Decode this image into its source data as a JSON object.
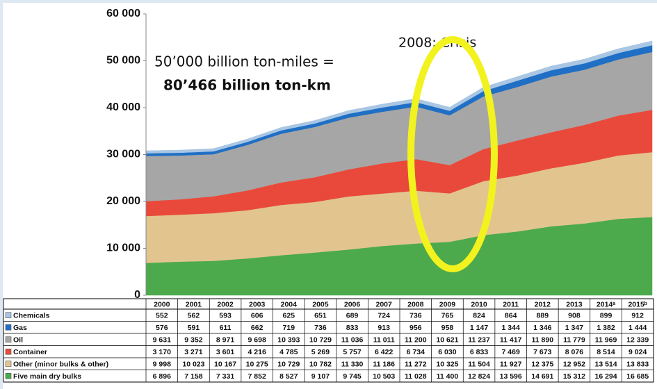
{
  "chart_data": {
    "type": "stacked_area",
    "categories": [
      "2000",
      "2001",
      "2002",
      "2003",
      "2004",
      "2005",
      "2006",
      "2007",
      "2008",
      "2009",
      "2010",
      "2011",
      "2012",
      "2013",
      "2014ᵃ",
      "2015ᵇ"
    ],
    "series": [
      {
        "name": "Chemicals",
        "color": "#a9c6e3",
        "values": [
          552,
          562,
          593,
          606,
          625,
          651,
          689,
          724,
          736,
          765,
          824,
          864,
          889,
          908,
          899,
          912
        ],
        "value_labels": [
          "552",
          "562",
          "593",
          "606",
          "625",
          "651",
          "689",
          "724",
          "736",
          "765",
          "824",
          "864",
          "889",
          "908",
          "899",
          "912"
        ]
      },
      {
        "name": "Gas",
        "color": "#1f6fc5",
        "values": [
          576,
          591,
          611,
          662,
          719,
          736,
          833,
          913,
          956,
          958,
          1147,
          1344,
          1346,
          1347,
          1382,
          1444
        ],
        "value_labels": [
          "576",
          "591",
          "611",
          "662",
          "719",
          "736",
          "833",
          "913",
          "956",
          "958",
          "1 147",
          "1 344",
          "1 346",
          "1 347",
          "1 382",
          "1 444"
        ]
      },
      {
        "name": "Oil",
        "color": "#a6a6a6",
        "values": [
          9631,
          9352,
          8971,
          9698,
          10393,
          10729,
          11036,
          11011,
          11200,
          10621,
          11237,
          11417,
          11890,
          11779,
          11969,
          12339
        ],
        "value_labels": [
          "9 631",
          "9 352",
          "8 971",
          "9 698",
          "10 393",
          "10 729",
          "11 036",
          "11 011",
          "11 200",
          "10 621",
          "11 237",
          "11 417",
          "11 890",
          "11 779",
          "11 969",
          "12 339"
        ]
      },
      {
        "name": "Container",
        "color": "#e9493a",
        "values": [
          3170,
          3271,
          3601,
          4216,
          4785,
          5269,
          5757,
          6422,
          6734,
          6030,
          6833,
          7469,
          7673,
          8076,
          8514,
          9024
        ],
        "value_labels": [
          "3 170",
          "3 271",
          "3 601",
          "4 216",
          "4 785",
          "5 269",
          "5 757",
          "6 422",
          "6 734",
          "6 030",
          "6 833",
          "7 469",
          "7 673",
          "8 076",
          "8 514",
          "9 024"
        ]
      },
      {
        "name": "Other (minor bulks & other)",
        "color": "#e2c48f",
        "values": [
          9998,
          10023,
          10167,
          10275,
          10729,
          10782,
          11330,
          11186,
          11272,
          10325,
          11504,
          11927,
          12375,
          12952,
          13514,
          13833
        ],
        "value_labels": [
          "9 998",
          "10 023",
          "10 167",
          "10 275",
          "10 729",
          "10 782",
          "11 330",
          "11 186",
          "11 272",
          "10 325",
          "11 504",
          "11 927",
          "12 375",
          "12 952",
          "13 514",
          "13 833"
        ]
      },
      {
        "name": "Five main dry bulks",
        "color": "#4caa4c",
        "values": [
          6896,
          7158,
          7331,
          7852,
          8527,
          9107,
          9745,
          10503,
          11028,
          11400,
          12824,
          13596,
          14691,
          15312,
          16294,
          16685
        ],
        "value_labels": [
          "6 896",
          "7 158",
          "7 331",
          "7 852",
          "8 527",
          "9 107",
          "9 745",
          "10 503",
          "11 028",
          "11 400",
          "12 824",
          "13 596",
          "14 691",
          "15 312",
          "16 294",
          "16 685"
        ]
      }
    ],
    "ylim": [
      0,
      60000
    ],
    "yticks": [
      0,
      {
        "value": 10000,
        "label": "10 000"
      },
      {
        "value": 20000,
        "label": "20 000"
      },
      {
        "value": 30000,
        "label": "30 000"
      },
      {
        "value": 40000,
        "label": "40 000"
      },
      {
        "value": 50000,
        "label": "50 000"
      },
      {
        "value": 60000,
        "label": "60 000"
      }
    ],
    "annotations": [
      "50’000 billion ton-miles =",
      "80’466 billion ton-km",
      "2008: Crisis"
    ]
  }
}
